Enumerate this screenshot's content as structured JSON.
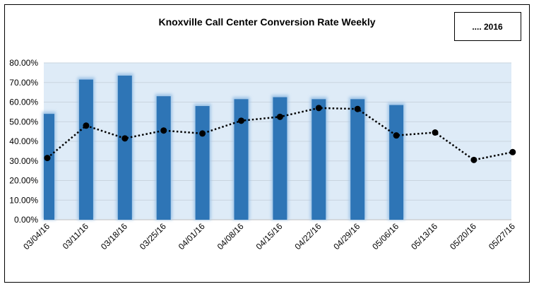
{
  "chart_data": {
    "type": "bar+line",
    "title": "Knoxville Call Center Conversion Rate Weekly",
    "legend": {
      "label": ".... 2016",
      "placement": "top-right"
    },
    "categories": [
      "03/04/16",
      "03/11/16",
      "03/18/16",
      "03/25/16",
      "04/01/16",
      "04/08/16",
      "04/15/16",
      "04/22/16",
      "04/29/16",
      "05/06/16",
      "05/13/16",
      "05/20/16",
      "05/27/16"
    ],
    "ylim": [
      0,
      80
    ],
    "yticks": [
      "0.00%",
      "10.00%",
      "20.00%",
      "30.00%",
      "40.00%",
      "50.00%",
      "60.00%",
      "70.00%",
      "80.00%"
    ],
    "grid": true,
    "series": [
      {
        "type": "bar",
        "values": [
          54,
          71.5,
          73.5,
          63,
          58,
          61.5,
          62.5,
          61.5,
          61.5,
          58.5,
          null,
          null,
          null
        ]
      },
      {
        "name": "2016",
        "type": "line",
        "values": [
          31.5,
          48,
          41.5,
          45.5,
          44,
          50.5,
          52.5,
          57,
          56.5,
          43,
          44.5,
          30.5,
          34.5
        ]
      }
    ],
    "colors": {
      "bar": "#2E75B6",
      "bar_glow": "#9DC3E6",
      "plot_bg": "#DEEBF7",
      "line": "#000000"
    }
  }
}
